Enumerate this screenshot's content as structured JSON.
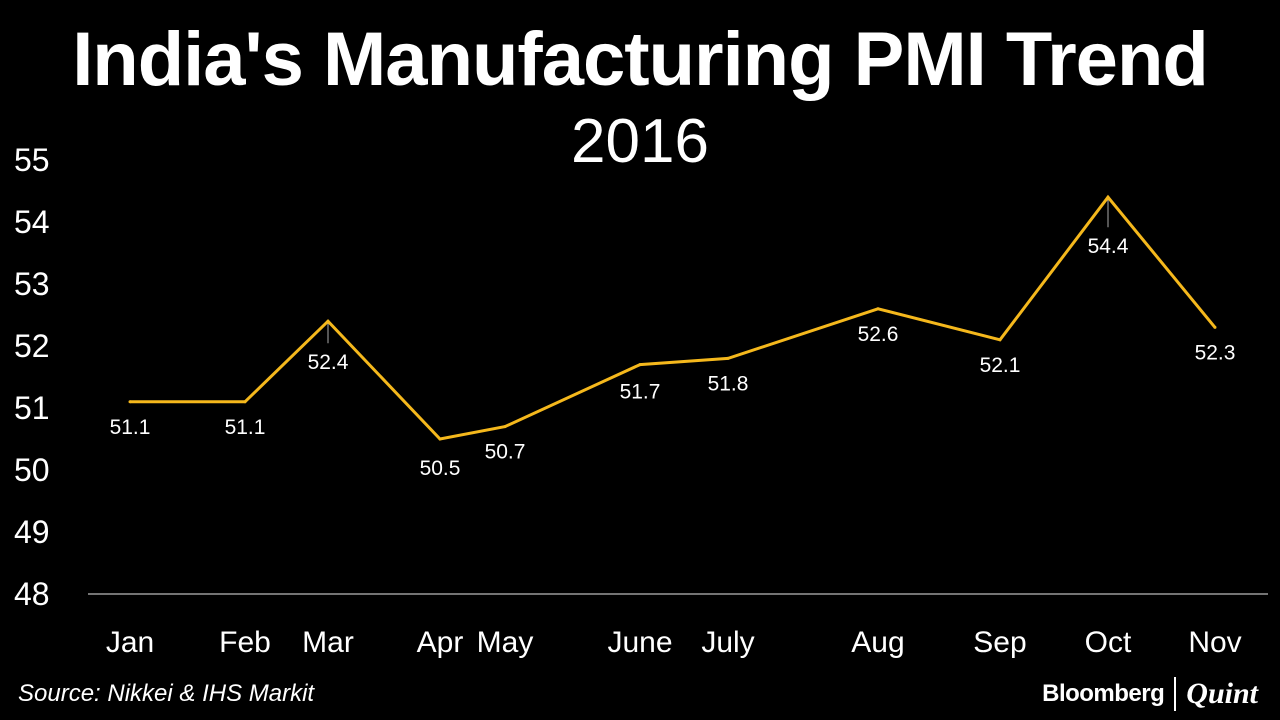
{
  "chart_data": {
    "type": "line",
    "title": "India's Manufacturing PMI Trend",
    "subtitle": "2016",
    "categories": [
      "Jan",
      "Feb",
      "Mar",
      "Apr",
      "May",
      "June",
      "July",
      "Aug",
      "Sep",
      "Oct",
      "Nov"
    ],
    "values": [
      51.1,
      51.1,
      52.4,
      50.5,
      50.7,
      51.7,
      51.8,
      52.6,
      52.1,
      54.4,
      52.3
    ],
    "value_labels": [
      "51.1",
      "51.1",
      "52.4",
      "50.5",
      "50.7",
      "51.7",
      "51.8",
      "52.6",
      "52.1",
      "54.4",
      "52.3"
    ],
    "y_ticks": [
      "48",
      "49",
      "50",
      "51",
      "52",
      "53",
      "54",
      "55"
    ],
    "ylim": [
      48,
      55
    ],
    "line_color": "#F5B81C",
    "grid": false
  },
  "footer": {
    "source": "Source: Nikkei & IHS Markit",
    "brand_left": "Bloomberg",
    "brand_right": "Quint"
  }
}
